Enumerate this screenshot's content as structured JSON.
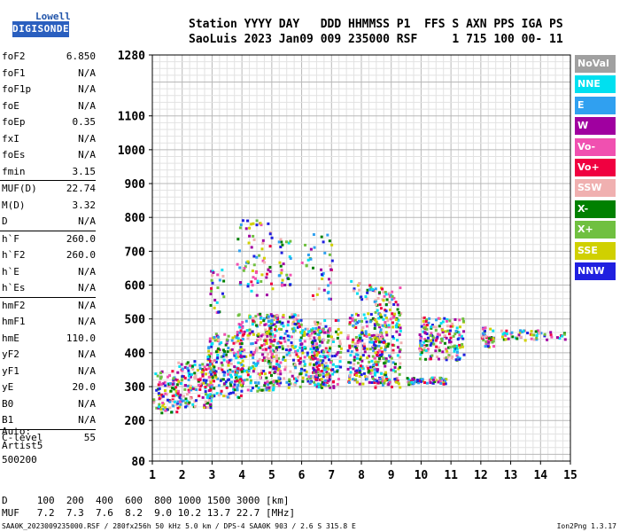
{
  "logo": {
    "line1": "Lowell",
    "line2": "DIGISONDE"
  },
  "header": {
    "line1": "Station YYYY DAY   DDD HHMMSS P1  FFS S AXN PPS IGA PS",
    "line2": "SaoLuis 2023 Jan09 009 235000 RSF     1 715 100 00- 11"
  },
  "params": [
    [
      {
        "k": "foF2",
        "v": "6.850"
      },
      {
        "k": "foF1",
        "v": "N/A"
      },
      {
        "k": "foF1p",
        "v": "N/A"
      },
      {
        "k": "foE",
        "v": "N/A"
      },
      {
        "k": "foEp",
        "v": "0.35"
      },
      {
        "k": "fxI",
        "v": "N/A"
      },
      {
        "k": "foEs",
        "v": "N/A"
      },
      {
        "k": "fmin",
        "v": "3.15"
      }
    ],
    [
      {
        "k": "MUF(D)",
        "v": "22.74"
      },
      {
        "k": "M(D)",
        "v": "3.32"
      },
      {
        "k": "D",
        "v": "N/A"
      }
    ],
    [
      {
        "k": "h`F",
        "v": "260.0"
      },
      {
        "k": "h`F2",
        "v": "260.0"
      },
      {
        "k": "h`E",
        "v": "N/A"
      },
      {
        "k": "h`Es",
        "v": "N/A"
      }
    ],
    [
      {
        "k": "hmF2",
        "v": "N/A"
      },
      {
        "k": "hmF1",
        "v": "N/A"
      },
      {
        "k": "hmE",
        "v": "110.0"
      },
      {
        "k": "yF2",
        "v": "N/A"
      },
      {
        "k": "yF1",
        "v": "N/A"
      },
      {
        "k": "yE",
        "v": "20.0"
      },
      {
        "k": "B0",
        "v": "N/A"
      },
      {
        "k": "B1",
        "v": "N/A"
      }
    ],
    [
      {
        "k": "C-level",
        "v": "55"
      }
    ]
  ],
  "auto": {
    "line1": "Auto:",
    "line2": "Artist5",
    "line3": "500200"
  },
  "legend": [
    {
      "label": "NoVal",
      "color": "#a0a0a0"
    },
    {
      "label": "NNE",
      "color": "#00e0f0"
    },
    {
      "label": "E",
      "color": "#30a0f0"
    },
    {
      "label": "W",
      "color": "#a000a0"
    },
    {
      "label": "Vo-",
      "color": "#f050b0"
    },
    {
      "label": "Vo+",
      "color": "#f00040"
    },
    {
      "label": "SSW",
      "color": "#f0b0b0"
    },
    {
      "label": "X-",
      "color": "#008000"
    },
    {
      "label": "X+",
      "color": "#70c040"
    },
    {
      "label": "SSE",
      "color": "#d0d000"
    },
    {
      "label": "NNW",
      "color": "#2020e0"
    }
  ],
  "bottom": {
    "line1": "D     100  200  400  600  800 1000 1500 3000 [km]",
    "line2": "MUF   7.2  7.3  7.6  8.2  9.0 10.2 13.7 22.7 [MHz]"
  },
  "footer": "SAA0K_2023009235000.RSF / 280fx256h 50 kHz 5.0 km / DPS-4 SAA0K 903 / 2.6 S 315.8 E",
  "version": "Ion2Png 1.3.17",
  "chart_data": {
    "type": "scatter",
    "xlim": [
      1,
      15
    ],
    "ylim": [
      80,
      1280
    ],
    "xticks": [
      1,
      2,
      3,
      4,
      5,
      6,
      7,
      8,
      9,
      10,
      11,
      12,
      13,
      14,
      15
    ],
    "yticks": [
      80,
      200,
      300,
      400,
      500,
      600,
      700,
      800,
      900,
      1000,
      1100,
      1280
    ],
    "grid": true,
    "clusters": [
      {
        "x": [
          1.0,
          1.8
        ],
        "y": [
          225,
          350
        ],
        "n": 90
      },
      {
        "x": [
          1.8,
          3.0
        ],
        "y": [
          240,
          380
        ],
        "n": 160
      },
      {
        "x": [
          2.8,
          4.0
        ],
        "y": [
          270,
          460
        ],
        "n": 200
      },
      {
        "x": [
          3.8,
          5.2
        ],
        "y": [
          290,
          520
        ],
        "n": 240
      },
      {
        "x": [
          4.8,
          6.0
        ],
        "y": [
          300,
          520
        ],
        "n": 180
      },
      {
        "x": [
          5.9,
          6.9
        ],
        "y": [
          300,
          480
        ],
        "n": 170
      },
      {
        "x": [
          6.3,
          7.3
        ],
        "y": [
          300,
          500
        ],
        "n": 120
      },
      {
        "x": [
          7.5,
          8.8
        ],
        "y": [
          310,
          520
        ],
        "n": 240
      },
      {
        "x": [
          8.4,
          9.3
        ],
        "y": [
          300,
          600
        ],
        "n": 170
      },
      {
        "x": [
          9.9,
          11.4
        ],
        "y": [
          380,
          510
        ],
        "n": 170
      },
      {
        "x": [
          9.5,
          10.8
        ],
        "y": [
          310,
          330
        ],
        "n": 60
      },
      {
        "x": [
          12.0,
          12.4
        ],
        "y": [
          420,
          480
        ],
        "n": 35
      },
      {
        "x": [
          12.6,
          14.8
        ],
        "y": [
          440,
          470
        ],
        "n": 55
      },
      {
        "x": [
          3.8,
          5.0
        ],
        "y": [
          560,
          800
        ],
        "n": 70
      },
      {
        "x": [
          2.9,
          3.4
        ],
        "y": [
          520,
          650
        ],
        "n": 25
      },
      {
        "x": [
          5.2,
          5.6
        ],
        "y": [
          600,
          740
        ],
        "n": 30
      },
      {
        "x": [
          5.9,
          7.0
        ],
        "y": [
          560,
          760
        ],
        "n": 40
      },
      {
        "x": [
          7.6,
          8.4
        ],
        "y": [
          560,
          620
        ],
        "n": 20
      }
    ]
  }
}
